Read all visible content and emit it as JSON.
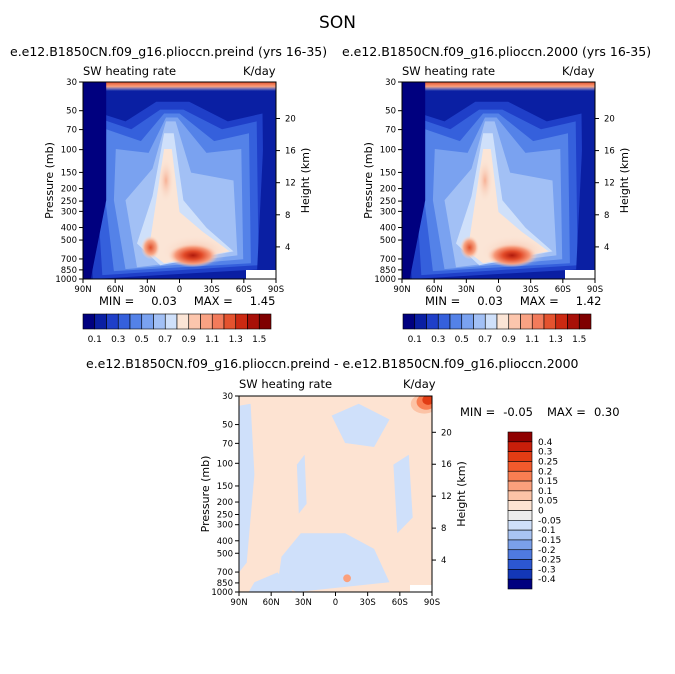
{
  "figure": {
    "title": "SON"
  },
  "chart_data": [
    {
      "type": "contour",
      "title": "e.e12.B1850CN.f09_g16.plioccn.preind (yrs 16-35)",
      "left_label": "SW heating rate",
      "right_label": "K/day",
      "xlabel": "",
      "ylabel": "Pressure (mb)",
      "y2label": "Height (km)",
      "xticks": [
        "90N",
        "60N",
        "30N",
        "0",
        "30S",
        "60S",
        "90S"
      ],
      "yticks": [
        "30",
        "50",
        "70",
        "100",
        "150",
        "200",
        "250",
        "300",
        "400",
        "500",
        "700",
        "850",
        "1000"
      ],
      "y2ticks": [
        "20",
        "16",
        "12",
        "8",
        "4"
      ],
      "ylim": [
        1000,
        30
      ],
      "xlim": [
        "90N",
        "90S"
      ],
      "stats": {
        "min_label": "MIN =",
        "min": "0.03",
        "max_label": "MAX =",
        "max": "1.45"
      },
      "colorbar": {
        "orientation": "horizontal",
        "levels": [
          0.1,
          0.2,
          0.3,
          0.4,
          0.5,
          0.6,
          0.7,
          0.8,
          0.9,
          1.0,
          1.1,
          1.2,
          1.3,
          1.4,
          1.5
        ],
        "labels": [
          "0.1",
          "0.3",
          "0.5",
          "0.7",
          "0.9",
          "1.1",
          "1.3",
          "1.5"
        ],
        "colors": [
          "#00007f",
          "#0a1fa3",
          "#1f3fc8",
          "#3560dc",
          "#5482e8",
          "#7aa2f0",
          "#a2c0f5",
          "#cfe0fa",
          "#fbe5d6",
          "#fcc6ad",
          "#f9a283",
          "#f27b5b",
          "#e4532f",
          "#cc2a12",
          "#a81008",
          "#7f0000"
        ]
      }
    },
    {
      "type": "contour",
      "title": "e.e12.B1850CN.f09_g16.plioccn.2000 (yrs 16-35)",
      "left_label": "SW heating rate",
      "right_label": "K/day",
      "xlabel": "",
      "ylabel": "Pressure (mb)",
      "y2label": "Height (km)",
      "xticks": [
        "90N",
        "60N",
        "30N",
        "0",
        "30S",
        "60S",
        "90S"
      ],
      "yticks": [
        "30",
        "50",
        "70",
        "100",
        "150",
        "200",
        "250",
        "300",
        "400",
        "500",
        "700",
        "850",
        "1000"
      ],
      "y2ticks": [
        "20",
        "16",
        "12",
        "8",
        "4"
      ],
      "ylim": [
        1000,
        30
      ],
      "xlim": [
        "90N",
        "90S"
      ],
      "stats": {
        "min_label": "MIN =",
        "min": "0.03",
        "max_label": "MAX =",
        "max": "1.42"
      },
      "colorbar": {
        "orientation": "horizontal",
        "levels": [
          0.1,
          0.2,
          0.3,
          0.4,
          0.5,
          0.6,
          0.7,
          0.8,
          0.9,
          1.0,
          1.1,
          1.2,
          1.3,
          1.4,
          1.5
        ],
        "labels": [
          "0.1",
          "0.3",
          "0.5",
          "0.7",
          "0.9",
          "1.1",
          "1.3",
          "1.5"
        ],
        "colors": [
          "#00007f",
          "#0a1fa3",
          "#1f3fc8",
          "#3560dc",
          "#5482e8",
          "#7aa2f0",
          "#a2c0f5",
          "#cfe0fa",
          "#fbe5d6",
          "#fcc6ad",
          "#f9a283",
          "#f27b5b",
          "#e4532f",
          "#cc2a12",
          "#a81008",
          "#7f0000"
        ]
      }
    },
    {
      "type": "contour",
      "title": "e.e12.B1850CN.f09_g16.plioccn.preind - e.e12.B1850CN.f09_g16.plioccn.2000",
      "left_label": "SW heating rate",
      "right_label": "K/day",
      "xlabel": "",
      "ylabel": "Pressure (mb)",
      "y2label": "Height (km)",
      "xticks": [
        "90N",
        "60N",
        "30N",
        "0",
        "30S",
        "60S",
        "90S"
      ],
      "yticks": [
        "30",
        "50",
        "70",
        "100",
        "150",
        "200",
        "250",
        "300",
        "400",
        "500",
        "700",
        "850",
        "1000"
      ],
      "y2ticks": [
        "20",
        "16",
        "12",
        "8",
        "4"
      ],
      "ylim": [
        1000,
        30
      ],
      "xlim": [
        "90N",
        "90S"
      ],
      "stats": {
        "min_label": "MIN =",
        "min": "-0.05",
        "max_label": "MAX =",
        "max": "0.30"
      },
      "colorbar": {
        "orientation": "vertical",
        "levels": [
          -0.4,
          -0.3,
          -0.25,
          -0.2,
          -0.15,
          -0.1,
          -0.05,
          0,
          0.05,
          0.1,
          0.15,
          0.2,
          0.25,
          0.3,
          0.4
        ],
        "labels": [
          "0.4",
          "0.3",
          "0.25",
          "0.2",
          "0.15",
          "0.1",
          "0.05",
          "0",
          "-0.05",
          "-0.1",
          "-0.15",
          "-0.2",
          "-0.25",
          "-0.3",
          "-0.4"
        ],
        "colors": [
          "#8f0000",
          "#c81e0a",
          "#e23c14",
          "#f25a2c",
          "#f97e52",
          "#fba07c",
          "#fcc3a6",
          "#fde3d2",
          "#ececec",
          "#cfe0fa",
          "#a9c4f3",
          "#7aa0ea",
          "#4f7ae0",
          "#2c57d2",
          "#1337b8",
          "#00007f"
        ]
      }
    }
  ]
}
